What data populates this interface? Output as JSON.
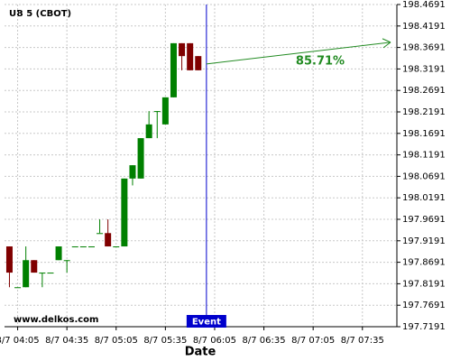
{
  "chart_data": {
    "type": "candlestick",
    "title": "UB 5 (CBOT)",
    "source": "www.delkos.com",
    "x_label": "Date",
    "x": [
      240,
      245,
      250,
      255,
      260,
      265,
      270,
      275,
      280,
      285,
      290,
      295,
      300,
      305,
      310,
      315,
      320,
      325,
      330,
      335,
      340,
      345,
      350,
      355
    ],
    "open": [
      197.906,
      197.811,
      197.811,
      197.874,
      197.845,
      197.845,
      197.874,
      197.874,
      197.906,
      197.906,
      197.906,
      197.937,
      197.937,
      197.906,
      197.906,
      198.064,
      198.064,
      198.158,
      198.221,
      198.19,
      198.253,
      198.379,
      198.379,
      198.349
    ],
    "high": [
      197.906,
      197.811,
      197.906,
      197.874,
      197.845,
      197.845,
      197.906,
      197.874,
      197.906,
      197.906,
      197.906,
      197.969,
      197.969,
      197.906,
      198.064,
      198.095,
      198.158,
      198.221,
      198.221,
      198.253,
      198.379,
      198.379,
      198.379,
      198.349
    ],
    "low": [
      197.811,
      197.811,
      197.811,
      197.845,
      197.811,
      197.845,
      197.874,
      197.845,
      197.906,
      197.906,
      197.906,
      197.937,
      197.906,
      197.906,
      197.906,
      198.048,
      198.064,
      198.158,
      198.158,
      198.19,
      198.253,
      198.316,
      198.316,
      198.316
    ],
    "close": [
      197.845,
      197.811,
      197.874,
      197.845,
      197.845,
      197.845,
      197.906,
      197.874,
      197.906,
      197.906,
      197.906,
      197.937,
      197.906,
      197.906,
      198.064,
      198.095,
      198.158,
      198.19,
      198.221,
      198.253,
      198.379,
      198.349,
      198.316,
      198.316
    ],
    "up_color": "#008000",
    "down_color": "#800000",
    "xlim": [
      237,
      476
    ],
    "xticks": [
      {
        "value": 245,
        "label": "8/7 04:05"
      },
      {
        "value": 275,
        "label": "8/7 04:35"
      },
      {
        "value": 305,
        "label": "8/7 05:05"
      },
      {
        "value": 335,
        "label": "8/7 05:35"
      },
      {
        "value": 365,
        "label": "8/7 06:05"
      },
      {
        "value": 395,
        "label": "8/7 06:35"
      },
      {
        "value": 425,
        "label": "8/7 07:05"
      },
      {
        "value": 455,
        "label": "8/7 07:35"
      }
    ],
    "ylim": [
      197.7191,
      198.4691
    ],
    "yticks": [
      197.7191,
      197.7691,
      197.8191,
      197.8691,
      197.9191,
      197.9691,
      198.0191,
      198.0691,
      198.1191,
      198.1691,
      198.2191,
      198.2691,
      198.3191,
      198.3691,
      198.4191,
      198.4691
    ],
    "grid": true,
    "event": {
      "x": 360,
      "label": "Event",
      "color": "#0000cc"
    },
    "forecast": {
      "label": "85.71%",
      "color": "#228b22"
    }
  }
}
